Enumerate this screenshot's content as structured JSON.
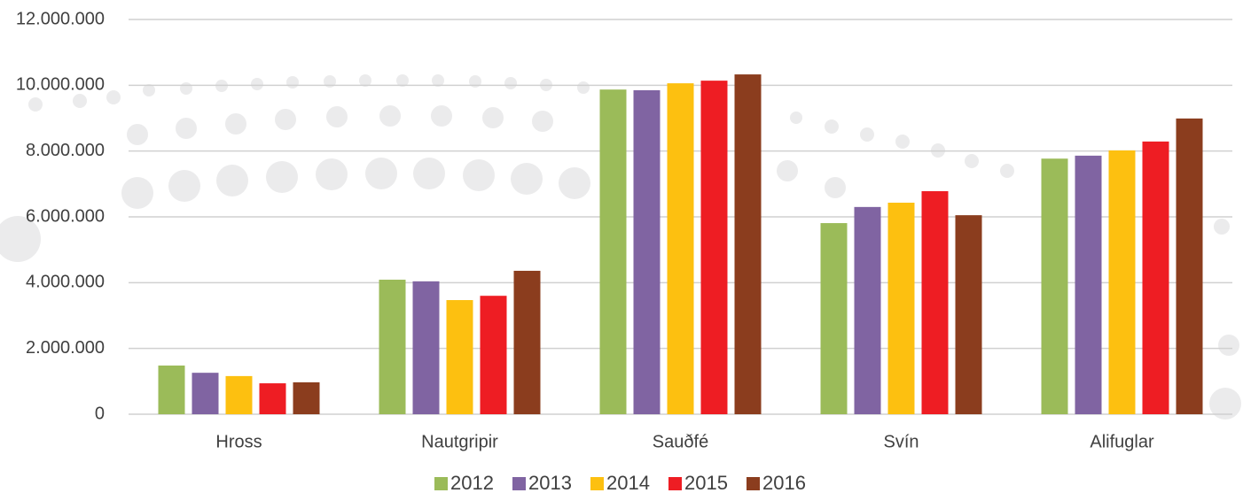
{
  "chart_data": {
    "type": "bar",
    "categories": [
      "Hross",
      "Nautgripir",
      "Sauðfé",
      "Svín",
      "Alifuglar"
    ],
    "series": [
      {
        "name": "2012",
        "color": "#9bbb59",
        "values": [
          1480000,
          4090000,
          9870000,
          5810000,
          7770000
        ]
      },
      {
        "name": "2013",
        "color": "#8064a2",
        "values": [
          1260000,
          4040000,
          9850000,
          6300000,
          7860000
        ]
      },
      {
        "name": "2014",
        "color": "#fdc010",
        "values": [
          1160000,
          3470000,
          10060000,
          6430000,
          8020000
        ]
      },
      {
        "name": "2015",
        "color": "#ee1d23",
        "values": [
          940000,
          3600000,
          10140000,
          6780000,
          8290000
        ]
      },
      {
        "name": "2016",
        "color": "#8b3d1e",
        "values": [
          970000,
          4360000,
          10330000,
          6050000,
          8990000
        ]
      }
    ],
    "ylim": [
      0,
      12000000
    ],
    "yticks": [
      0,
      {
        "value": 2000000,
        "label": "2.000.000"
      },
      {
        "value": 4000000,
        "label": "4.000.000"
      },
      {
        "value": 6000000,
        "label": "6.000.000"
      },
      {
        "value": 8000000,
        "label": "8.000.000"
      },
      {
        "value": 10000000,
        "label": "10.000.000"
      },
      {
        "value": 12000000,
        "label": "12.000.000"
      }
    ],
    "grid": true,
    "legend": "bottom"
  }
}
